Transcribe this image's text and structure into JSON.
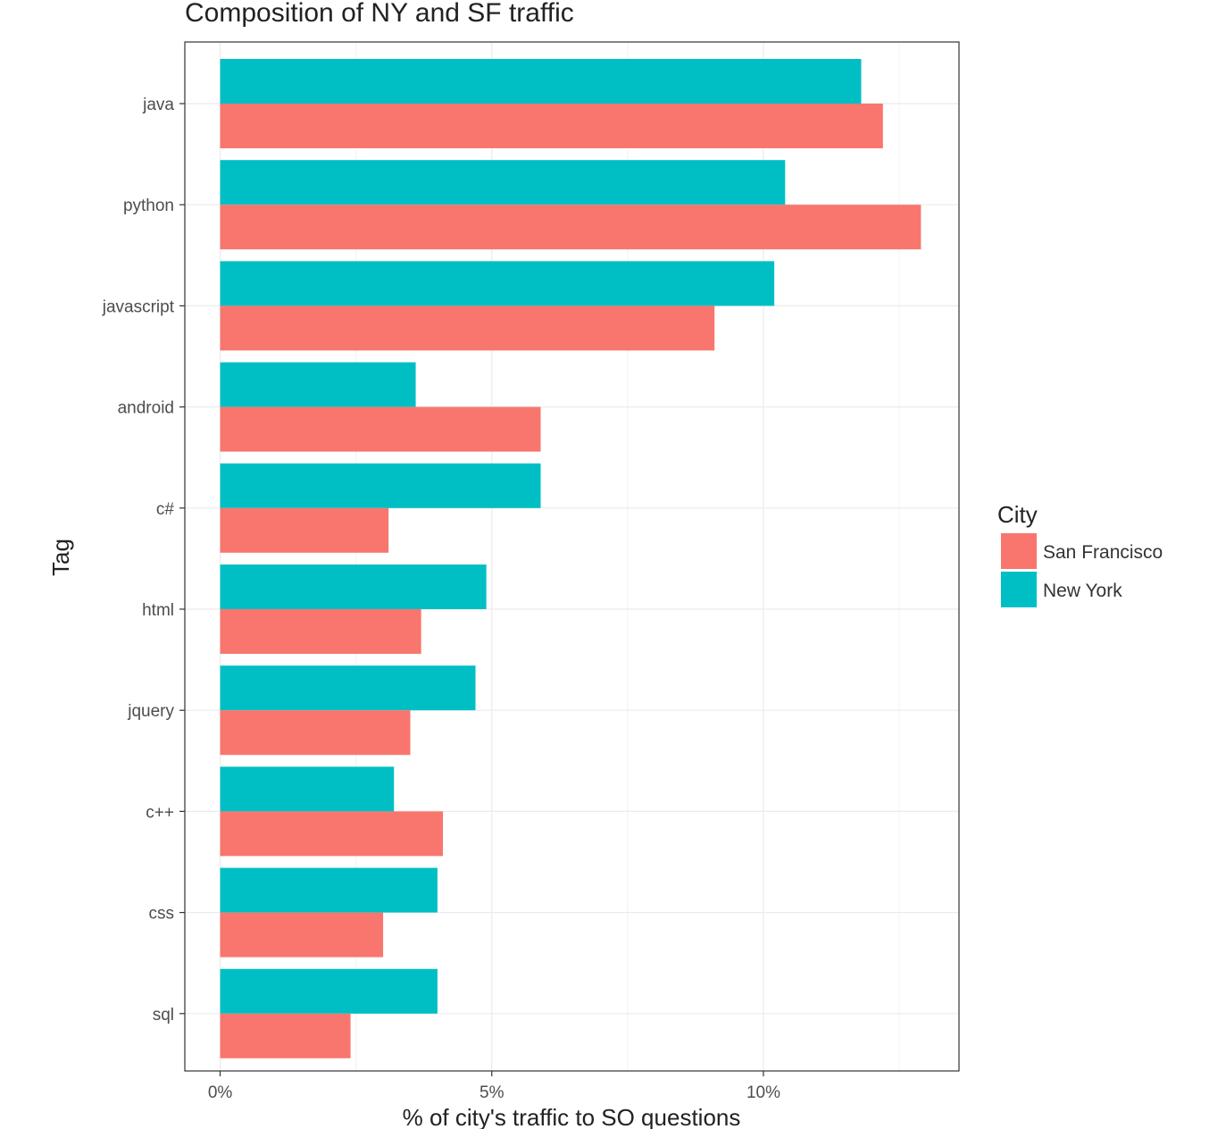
{
  "chart_data": {
    "type": "bar",
    "orientation": "horizontal",
    "title": "Composition of NY and SF traffic",
    "xlabel": "% of city's traffic to SO questions",
    "ylabel": "Tag",
    "categories": [
      "java",
      "python",
      "javascript",
      "android",
      "c#",
      "html",
      "jquery",
      "c++",
      "css",
      "sql"
    ],
    "series": [
      {
        "name": "New York",
        "color": "#00BFC4",
        "values": [
          11.8,
          10.4,
          10.2,
          3.6,
          5.9,
          4.9,
          4.7,
          3.2,
          4.0,
          4.0
        ]
      },
      {
        "name": "San Francisco",
        "color": "#F8766D",
        "values": [
          12.2,
          12.9,
          9.1,
          5.9,
          3.1,
          3.7,
          3.5,
          4.1,
          3.0,
          2.4
        ]
      }
    ],
    "xticks": [
      0,
      5,
      10
    ],
    "xtick_labels": [
      "0%",
      "5%",
      "10%"
    ],
    "xlim": [
      -0.65,
      13.6
    ],
    "grid": true,
    "legend": {
      "title": "City",
      "position": "right",
      "entries": [
        {
          "label": "San Francisco",
          "color": "#F8766D"
        },
        {
          "label": "New York",
          "color": "#00BFC4"
        }
      ]
    }
  }
}
